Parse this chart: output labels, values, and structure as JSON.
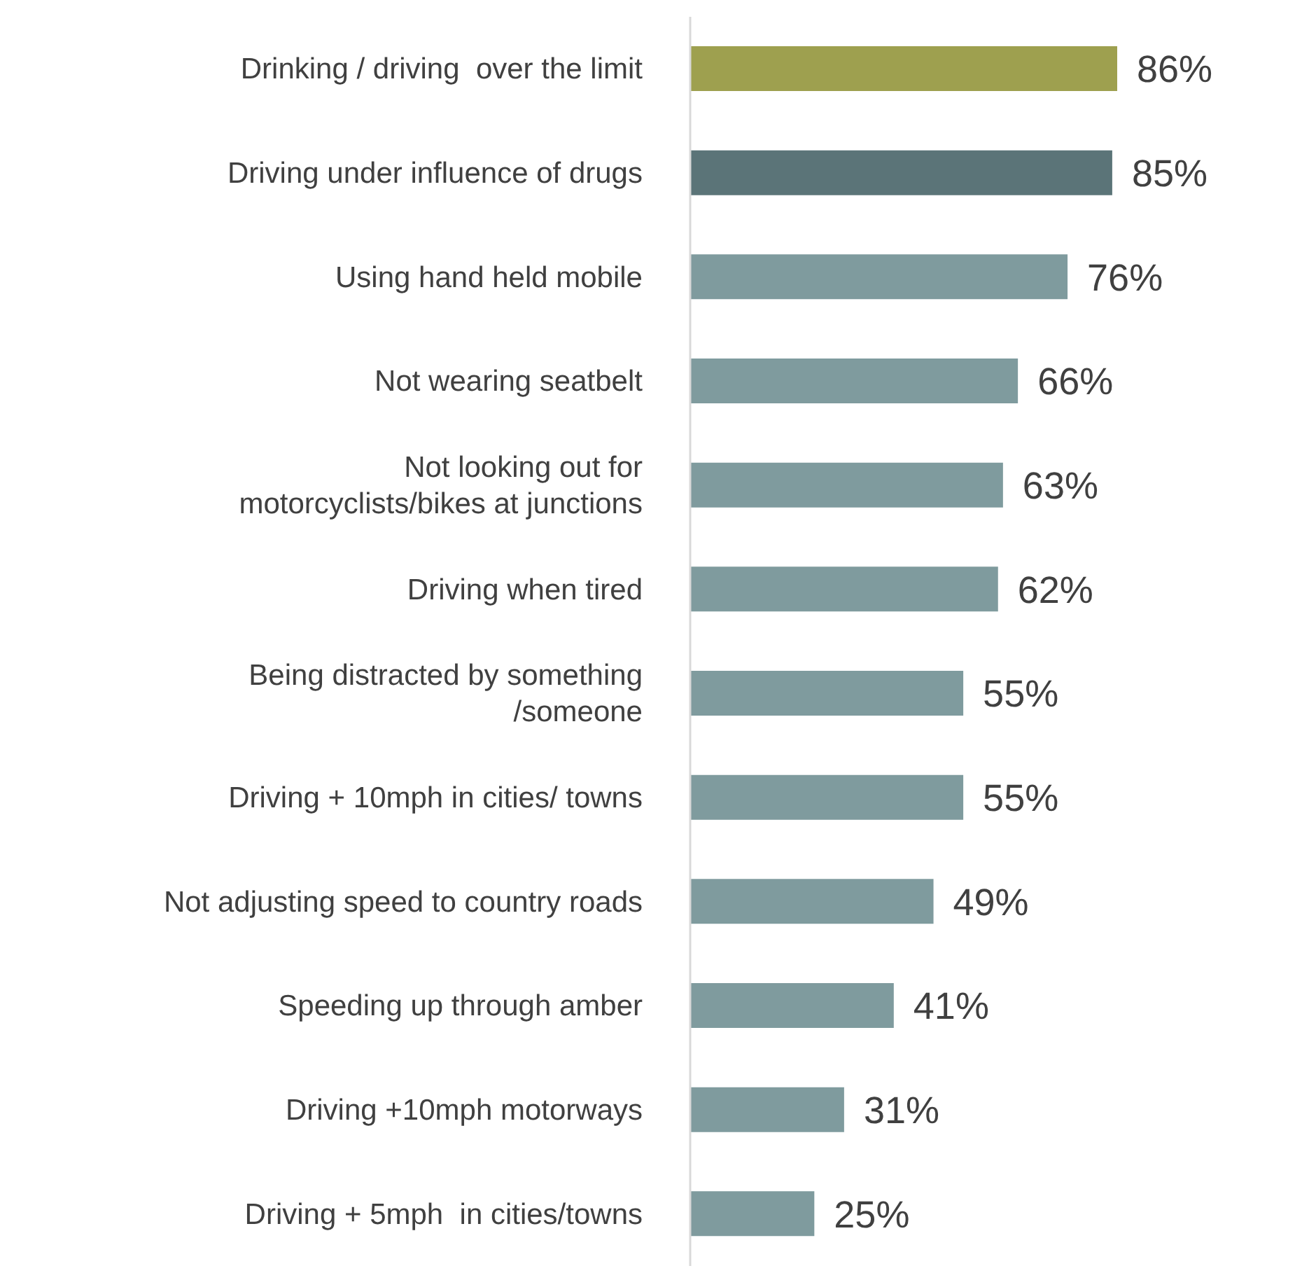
{
  "chart_data": {
    "type": "bar",
    "orientation": "horizontal",
    "categories": [
      "Drinking / driving  over the limit",
      "Driving under influence of drugs",
      "Using hand held mobile",
      "Not wearing seatbelt",
      "Not looking out for motorcyclists/bikes at junctions",
      "Driving when tired",
      "Being distracted by something /someone",
      "Driving + 10mph in cities/ towns",
      "Not adjusting speed to country roads",
      "Speeding up through amber",
      "Driving +10mph motorways",
      "Driving + 5mph  in cities/towns"
    ],
    "values": [
      86,
      85,
      76,
      66,
      63,
      62,
      55,
      55,
      49,
      41,
      31,
      25
    ],
    "value_labels": [
      "86%",
      "85%",
      "76%",
      "66%",
      "63%",
      "62%",
      "55%",
      "55%",
      "49%",
      "41%",
      "31%",
      "25%"
    ],
    "colors": [
      "#9ea04f",
      "#5b7478",
      "#7f9b9e",
      "#7f9b9e",
      "#7f9b9e",
      "#7f9b9e",
      "#7f9b9e",
      "#7f9b9e",
      "#7f9b9e",
      "#7f9b9e",
      "#7f9b9e",
      "#7f9b9e"
    ]
  }
}
